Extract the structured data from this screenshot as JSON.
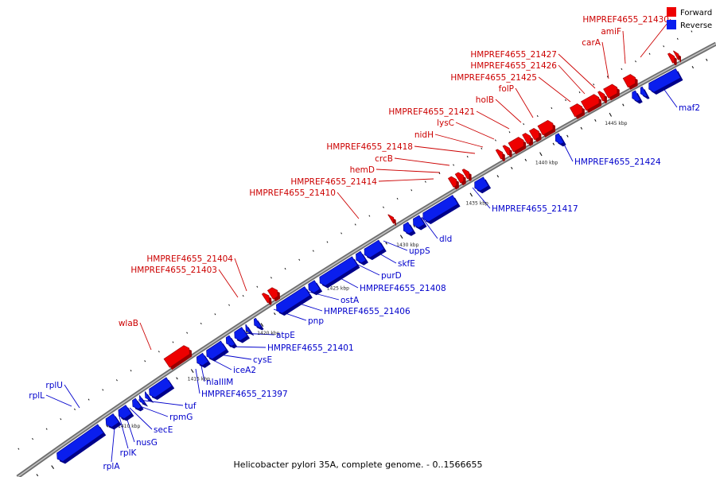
{
  "title": "Helicobacter pylori 35A, complete genome. - 0..1566655",
  "legend": [
    {
      "label": "Forward",
      "color": "#ee0000"
    },
    {
      "label": "Reverse",
      "color": "#0a1eee"
    }
  ],
  "colors": {
    "forward_fill": "#ee0000",
    "forward_dark": "#990000",
    "forward_label": "#cc0000",
    "reverse_fill": "#0a1eee",
    "reverse_dark": "#00008a",
    "reverse_label": "#0000cc",
    "backbone": "#888888"
  },
  "ticks": [
    {
      "label": "1410 kbp",
      "kbp": 1410
    },
    {
      "label": "1415 kbp",
      "kbp": 1415
    },
    {
      "label": "1420 kbp",
      "kbp": 1420
    },
    {
      "label": "1425 kbp",
      "kbp": 1425
    },
    {
      "label": "1430 kbp",
      "kbp": 1430
    },
    {
      "label": "1435 kbp",
      "kbp": 1435
    },
    {
      "label": "1440 kbp",
      "kbp": 1440
    },
    {
      "label": "1445 kbp",
      "kbp": 1445
    }
  ],
  "genes": [
    {
      "name": "",
      "strand": "reverse",
      "start_kbp": 1405.5,
      "end_kbp": 1408.6
    },
    {
      "name": "rplA",
      "strand": "reverse",
      "start_kbp": 1409.0,
      "end_kbp": 1409.7
    },
    {
      "name": "rplK",
      "strand": "reverse",
      "start_kbp": 1409.9,
      "end_kbp": 1410.6
    },
    {
      "name": "nusG",
      "strand": "reverse",
      "start_kbp": 1410.9,
      "end_kbp": 1411.3
    },
    {
      "name": "secE",
      "strand": "reverse",
      "start_kbp": 1411.4,
      "end_kbp": 1411.6
    },
    {
      "name": "rpmG",
      "strand": "reverse",
      "start_kbp": 1411.8,
      "end_kbp": 1412.0
    },
    {
      "name": "tuf",
      "strand": "reverse",
      "start_kbp": 1412.1,
      "end_kbp": 1413.5
    },
    {
      "name": "HMPREF4655_21397",
      "strand": "reverse",
      "start_kbp": 1415.5,
      "end_kbp": 1416.1
    },
    {
      "name": "nlaIIIM",
      "strand": "reverse",
      "start_kbp": 1416.2,
      "end_kbp": 1417.4
    },
    {
      "name": "iceA2",
      "strand": "reverse",
      "start_kbp": 1417.6,
      "end_kbp": 1418.0
    },
    {
      "name": "cysE",
      "strand": "reverse",
      "start_kbp": 1418.2,
      "end_kbp": 1418.9
    },
    {
      "name": "HMPREF4655_21401",
      "strand": "reverse",
      "start_kbp": 1419.0,
      "end_kbp": 1419.2
    },
    {
      "name": "atpE",
      "strand": "reverse",
      "start_kbp": 1419.6,
      "end_kbp": 1419.9
    },
    {
      "name": "pnp",
      "strand": "reverse",
      "start_kbp": 1421.2,
      "end_kbp": 1423.4
    },
    {
      "name": "HMPREF4655_21406",
      "strand": "reverse",
      "start_kbp": 1423.5,
      "end_kbp": 1424.1
    },
    {
      "name": "ostA",
      "strand": "reverse",
      "start_kbp": 1424.3,
      "end_kbp": 1426.8
    },
    {
      "name": "HMPREF4655_21408",
      "strand": "reverse",
      "start_kbp": 1426.9,
      "end_kbp": 1427.4
    },
    {
      "name": "purD",
      "strand": "reverse",
      "start_kbp": 1427.5,
      "end_kbp": 1428.7
    },
    {
      "name": "skfE",
      "strand": "reverse",
      "start_kbp": 1430.3,
      "end_kbp": 1430.8
    },
    {
      "name": "uppS",
      "strand": "reverse",
      "start_kbp": 1431.0,
      "end_kbp": 1431.6
    },
    {
      "name": "dld",
      "strand": "reverse",
      "start_kbp": 1431.7,
      "end_kbp": 1434.0
    },
    {
      "name": "HMPREF4655_21417",
      "strand": "reverse",
      "start_kbp": 1435.4,
      "end_kbp": 1436.2
    },
    {
      "name": "HMPREF4655_21424",
      "strand": "reverse",
      "start_kbp": 1441.2,
      "end_kbp": 1441.6
    },
    {
      "name": "maf2",
      "strand": "reverse",
      "start_kbp": 1446.7,
      "end_kbp": 1447.1
    },
    {
      "name": "",
      "strand": "reverse",
      "start_kbp": 1447.3,
      "end_kbp": 1447.6
    },
    {
      "name": "",
      "strand": "reverse",
      "start_kbp": 1447.9,
      "end_kbp": 1450.0
    },
    {
      "name": "wlaB",
      "strand": "forward",
      "start_kbp": 1414.0,
      "end_kbp": 1415.6
    },
    {
      "name": "HMPREF4655_21403",
      "strand": "forward",
      "start_kbp": 1421.0,
      "end_kbp": 1421.3
    },
    {
      "name": "HMPREF4655_21404",
      "strand": "forward",
      "start_kbp": 1421.4,
      "end_kbp": 1421.9
    },
    {
      "name": "HMPREF4655_21410",
      "strand": "forward",
      "start_kbp": 1430.0,
      "end_kbp": 1430.2
    },
    {
      "name": "HMPREF4655_21414",
      "strand": "forward",
      "start_kbp": 1434.3,
      "end_kbp": 1434.7
    },
    {
      "name": "hemD",
      "strand": "forward",
      "start_kbp": 1434.8,
      "end_kbp": 1435.2
    },
    {
      "name": "crcB",
      "strand": "forward",
      "start_kbp": 1435.3,
      "end_kbp": 1435.6
    },
    {
      "name": "HMPREF4655_21418",
      "strand": "forward",
      "start_kbp": 1437.7,
      "end_kbp": 1438.0
    },
    {
      "name": "nidH",
      "strand": "forward",
      "start_kbp": 1438.2,
      "end_kbp": 1438.5
    },
    {
      "name": "lysC",
      "strand": "forward",
      "start_kbp": 1438.6,
      "end_kbp": 1439.5
    },
    {
      "name": "HMPREF4655_21421",
      "strand": "forward",
      "start_kbp": 1439.6,
      "end_kbp": 1440.0
    },
    {
      "name": "holB",
      "strand": "forward",
      "start_kbp": 1440.1,
      "end_kbp": 1440.6
    },
    {
      "name": "folP",
      "strand": "forward",
      "start_kbp": 1440.7,
      "end_kbp": 1441.6
    },
    {
      "name": "HMPREF4655_21425",
      "strand": "forward",
      "start_kbp": 1443.0,
      "end_kbp": 1443.7
    },
    {
      "name": "HMPREF4655_21426",
      "strand": "forward",
      "start_kbp": 1443.8,
      "end_kbp": 1444.9
    },
    {
      "name": "HMPREF4655_21427",
      "strand": "forward",
      "start_kbp": 1445.0,
      "end_kbp": 1445.3
    },
    {
      "name": "carA",
      "strand": "forward",
      "start_kbp": 1445.4,
      "end_kbp": 1446.2
    },
    {
      "name": "amiF",
      "strand": "forward",
      "start_kbp": 1446.8,
      "end_kbp": 1447.5
    },
    {
      "name": "HMPREF4655_21430",
      "strand": "forward",
      "start_kbp": 1450.0,
      "end_kbp": 1450.3
    },
    {
      "name": "",
      "strand": "forward",
      "start_kbp": 1450.4,
      "end_kbp": 1450.6
    }
  ],
  "labels": [
    {
      "text": "rplL",
      "strand": "reverse"
    },
    {
      "text": "rplU",
      "strand": "reverse"
    },
    {
      "text": "rplA",
      "strand": "reverse"
    },
    {
      "text": "rplK",
      "strand": "reverse"
    },
    {
      "text": "nusG",
      "strand": "reverse"
    },
    {
      "text": "secE",
      "strand": "reverse"
    },
    {
      "text": "rpmG",
      "strand": "reverse"
    },
    {
      "text": "tuf",
      "strand": "reverse"
    },
    {
      "text": "HMPREF4655_21397",
      "strand": "reverse"
    },
    {
      "text": "nlaIIIM",
      "strand": "reverse"
    },
    {
      "text": "iceA2",
      "strand": "reverse"
    },
    {
      "text": "cysE",
      "strand": "reverse"
    },
    {
      "text": "HMPREF4655_21401",
      "strand": "reverse"
    },
    {
      "text": "atpE",
      "strand": "reverse"
    },
    {
      "text": "pnp",
      "strand": "reverse"
    },
    {
      "text": "HMPREF4655_21406",
      "strand": "reverse"
    },
    {
      "text": "ostA",
      "strand": "reverse"
    },
    {
      "text": "HMPREF4655_21408",
      "strand": "reverse"
    },
    {
      "text": "purD",
      "strand": "reverse"
    },
    {
      "text": "skfE",
      "strand": "reverse"
    },
    {
      "text": "uppS",
      "strand": "reverse"
    },
    {
      "text": "dld",
      "strand": "reverse"
    },
    {
      "text": "HMPREF4655_21417",
      "strand": "reverse"
    },
    {
      "text": "HMPREF4655_21424",
      "strand": "reverse"
    },
    {
      "text": "maf2",
      "strand": "reverse"
    },
    {
      "text": "wlaB",
      "strand": "forward"
    },
    {
      "text": "HMPREF4655_21403",
      "strand": "forward"
    },
    {
      "text": "HMPREF4655_21404",
      "strand": "forward"
    },
    {
      "text": "HMPREF4655_21410",
      "strand": "forward"
    },
    {
      "text": "HMPREF4655_21414",
      "strand": "forward"
    },
    {
      "text": "hemD",
      "strand": "forward"
    },
    {
      "text": "crcB",
      "strand": "forward"
    },
    {
      "text": "HMPREF4655_21418",
      "strand": "forward"
    },
    {
      "text": "nidH",
      "strand": "forward"
    },
    {
      "text": "lysC",
      "strand": "forward"
    },
    {
      "text": "HMPREF4655_21421",
      "strand": "forward"
    },
    {
      "text": "holB",
      "strand": "forward"
    },
    {
      "text": "folP",
      "strand": "forward"
    },
    {
      "text": "HMPREF4655_21425",
      "strand": "forward"
    },
    {
      "text": "HMPREF4655_21426",
      "strand": "forward"
    },
    {
      "text": "HMPREF4655_21427",
      "strand": "forward"
    },
    {
      "text": "carA",
      "strand": "forward"
    },
    {
      "text": "amiF",
      "strand": "forward"
    },
    {
      "text": "HMPREF4655_21430",
      "strand": "forward"
    }
  ]
}
